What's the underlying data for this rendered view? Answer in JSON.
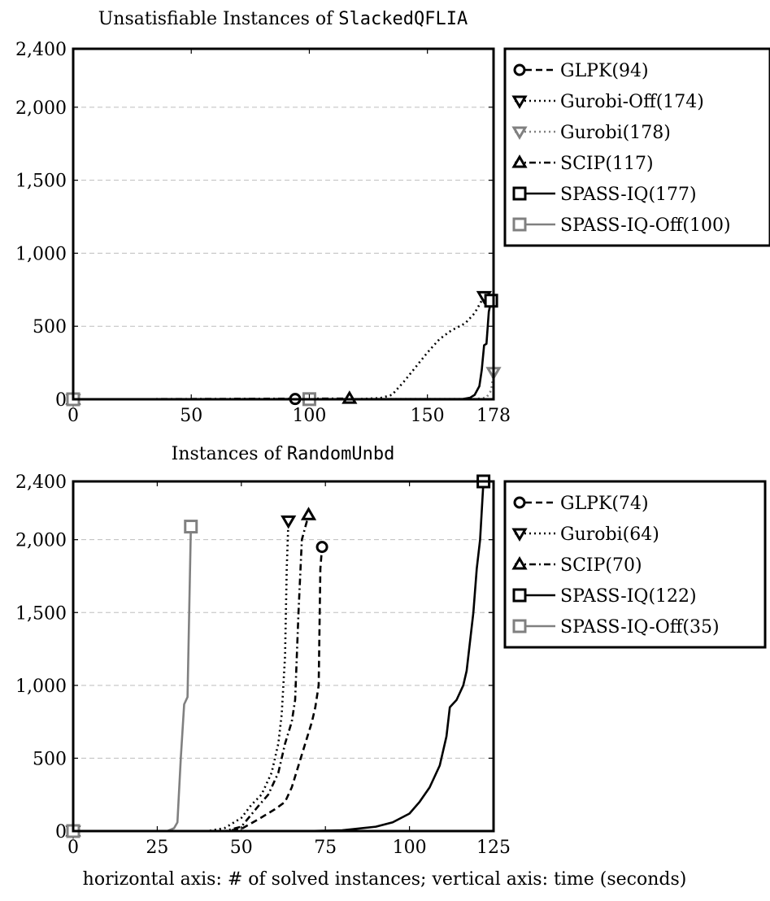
{
  "caption": "horizontal axis: # of solved instances; vertical axis: time (seconds)",
  "chart_data": [
    {
      "type": "line",
      "title": "Unsatisfiable Instances of SlackedQFLIA",
      "title_prefix": "Unsatisfiable Instances of ",
      "title_mono": "SlackedQFLIA",
      "xlabel": "",
      "ylabel": "",
      "xlim": [
        0,
        178
      ],
      "ylim": [
        0,
        2400
      ],
      "xticks": [
        0,
        50,
        100,
        150,
        178
      ],
      "xtick_labels": [
        "0",
        "50",
        "100",
        "150",
        "178"
      ],
      "yticks": [
        0,
        500,
        1000,
        1500,
        2000,
        2400
      ],
      "ytick_labels": [
        "0",
        "500",
        "1,000",
        "1,500",
        "2,000",
        "2,400"
      ],
      "grid": "horizontal dashed",
      "legend_position": "outside-right",
      "series": [
        {
          "name": "GLPK(94)",
          "color": "#000000",
          "dash": "dash",
          "marker": "circle",
          "points": [
            [
              0,
              0
            ],
            [
              94,
              2
            ]
          ]
        },
        {
          "name": "Gurobi-Off(174)",
          "color": "#000000",
          "dash": "dot",
          "marker": "triangle-down",
          "points": [
            [
              0,
              0
            ],
            [
              120,
              1
            ],
            [
              130,
              8
            ],
            [
              135,
              30
            ],
            [
              140,
              120
            ],
            [
              145,
              220
            ],
            [
              150,
              320
            ],
            [
              155,
              410
            ],
            [
              160,
              470
            ],
            [
              166,
              520
            ],
            [
              170,
              590
            ],
            [
              174,
              705
            ]
          ]
        },
        {
          "name": "Gurobi(178)",
          "color": "#808080",
          "dash": "dot",
          "marker": "triangle-down",
          "points": [
            [
              0,
              0
            ],
            [
              170,
              2
            ],
            [
              175,
              12
            ],
            [
              177,
              60
            ],
            [
              178,
              185
            ]
          ]
        },
        {
          "name": "SCIP(117)",
          "color": "#000000",
          "dash": "dashdot",
          "marker": "triangle-up",
          "points": [
            [
              0,
              0
            ],
            [
              117,
              5
            ]
          ]
        },
        {
          "name": "SPASS-IQ(177)",
          "color": "#000000",
          "dash": "solid",
          "marker": "square",
          "points": [
            [
              0,
              0
            ],
            [
              165,
              2
            ],
            [
              168,
              10
            ],
            [
              170,
              30
            ],
            [
              172,
              90
            ],
            [
              173,
              200
            ],
            [
              174,
              370
            ],
            [
              175,
              380
            ],
            [
              176,
              600
            ],
            [
              177,
              675
            ]
          ]
        },
        {
          "name": "SPASS-IQ-Off(100)",
          "color": "#808080",
          "dash": "solid",
          "marker": "square",
          "points": [
            [
              0,
              0
            ],
            [
              100,
              1
            ]
          ]
        }
      ]
    },
    {
      "type": "line",
      "title": "Instances of RandomUnbd",
      "title_prefix": "Instances of ",
      "title_mono": "RandomUnbd",
      "xlabel": "",
      "ylabel": "",
      "xlim": [
        0,
        125
      ],
      "ylim": [
        0,
        2400
      ],
      "xticks": [
        0,
        25,
        50,
        75,
        100,
        125
      ],
      "xtick_labels": [
        "0",
        "25",
        "50",
        "75",
        "100",
        "125"
      ],
      "yticks": [
        0,
        500,
        1000,
        1500,
        2000,
        2400
      ],
      "ytick_labels": [
        "0",
        "500",
        "1,000",
        "1,500",
        "2,000",
        "2,400"
      ],
      "grid": "horizontal dashed",
      "legend_position": "outside-right",
      "series": [
        {
          "name": "GLPK(74)",
          "color": "#000000",
          "dash": "dash",
          "marker": "circle",
          "points": [
            [
              0,
              0
            ],
            [
              45,
              0
            ],
            [
              50,
              15
            ],
            [
              55,
              80
            ],
            [
              60,
              150
            ],
            [
              63,
              200
            ],
            [
              65,
              300
            ],
            [
              67,
              450
            ],
            [
              69,
              600
            ],
            [
              71,
              750
            ],
            [
              72,
              850
            ],
            [
              73,
              1000
            ],
            [
              73.5,
              1800
            ],
            [
              74,
              1950
            ]
          ]
        },
        {
          "name": "Gurobi(64)",
          "color": "#000000",
          "dash": "dot",
          "marker": "triangle-down",
          "points": [
            [
              0,
              0
            ],
            [
              40,
              0
            ],
            [
              45,
              20
            ],
            [
              50,
              90
            ],
            [
              53,
              180
            ],
            [
              56,
              250
            ],
            [
              59,
              400
            ],
            [
              61,
              600
            ],
            [
              62,
              800
            ],
            [
              63,
              1200
            ],
            [
              63.5,
              1800
            ],
            [
              64,
              2130
            ]
          ]
        },
        {
          "name": "SCIP(70)",
          "color": "#000000",
          "dash": "dashdot",
          "marker": "triangle-up",
          "points": [
            [
              0,
              0
            ],
            [
              45,
              0
            ],
            [
              50,
              30
            ],
            [
              55,
              170
            ],
            [
              58,
              250
            ],
            [
              61,
              400
            ],
            [
              63,
              600
            ],
            [
              65,
              750
            ],
            [
              66,
              900
            ],
            [
              67,
              1500
            ],
            [
              68,
              2000
            ],
            [
              70,
              2170
            ]
          ]
        },
        {
          "name": "SPASS-IQ(122)",
          "color": "#000000",
          "dash": "solid",
          "marker": "square",
          "points": [
            [
              0,
              0
            ],
            [
              70,
              0
            ],
            [
              80,
              5
            ],
            [
              90,
              30
            ],
            [
              95,
              60
            ],
            [
              100,
              120
            ],
            [
              103,
              200
            ],
            [
              106,
              300
            ],
            [
              109,
              450
            ],
            [
              111,
              650
            ],
            [
              112,
              850
            ],
            [
              114,
              900
            ],
            [
              116,
              1000
            ],
            [
              117,
              1100
            ],
            [
              119,
              1500
            ],
            [
              120,
              1800
            ],
            [
              121,
              2000
            ],
            [
              122,
              2400
            ]
          ]
        },
        {
          "name": "SPASS-IQ-Off(35)",
          "color": "#808080",
          "dash": "solid",
          "marker": "square",
          "points": [
            [
              0,
              0
            ],
            [
              28,
              0
            ],
            [
              30,
              20
            ],
            [
              31,
              60
            ],
            [
              32,
              500
            ],
            [
              33,
              870
            ],
            [
              34,
              920
            ],
            [
              35,
              2090
            ]
          ]
        }
      ]
    }
  ]
}
